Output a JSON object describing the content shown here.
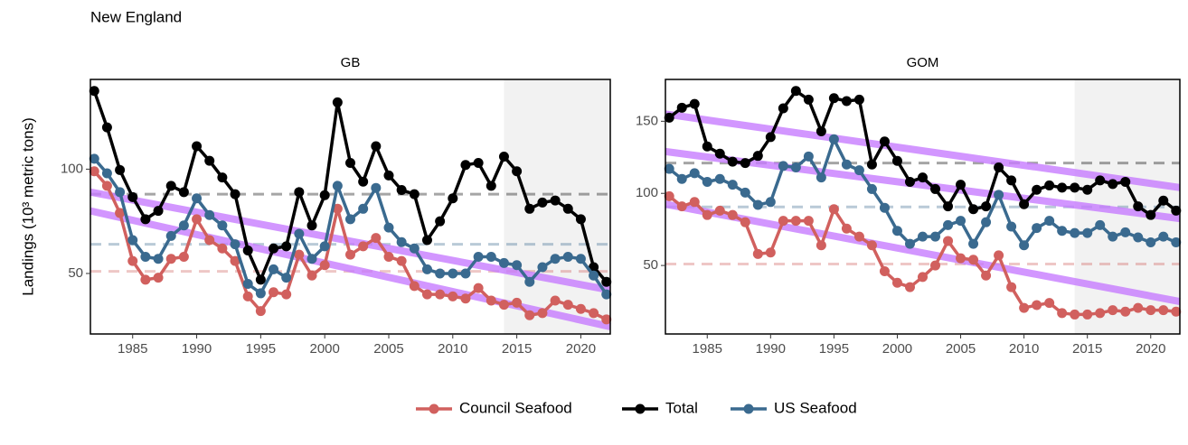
{
  "title": "New England",
  "ylabel": "Landings (10³ metric tons)",
  "chart_data": [
    {
      "type": "line",
      "title": "GB",
      "x": [
        1982,
        1983,
        1984,
        1985,
        1986,
        1987,
        1988,
        1989,
        1990,
        1991,
        1992,
        1993,
        1994,
        1995,
        1996,
        1997,
        1998,
        1999,
        2000,
        2001,
        2002,
        2003,
        2004,
        2005,
        2006,
        2007,
        2008,
        2009,
        2010,
        2011,
        2012,
        2013,
        2014,
        2015,
        2016,
        2017,
        2018,
        2019,
        2020,
        2021,
        2022
      ],
      "xlim": [
        1981.7,
        2022.3
      ],
      "xticks": [
        1985,
        1990,
        1995,
        2000,
        2005,
        2010,
        2015,
        2020
      ],
      "ylim": [
        21,
        143
      ],
      "yticks": [
        50,
        100
      ],
      "shade_start": 2014,
      "shade_color": "#f2f2f2",
      "trend_color": "#c77cff",
      "series": [
        {
          "name": "Council Seafood",
          "color": "#d1605e",
          "mean": 51,
          "trend": [
            80,
            24.5
          ],
          "values": [
            99,
            92,
            79,
            56,
            47,
            48,
            57,
            58,
            76,
            66,
            62,
            56,
            39,
            32,
            41,
            40,
            59,
            49,
            54,
            81,
            59,
            63,
            67,
            58,
            56,
            44,
            40,
            40,
            39,
            38,
            43,
            37,
            35,
            36,
            30,
            31,
            37,
            35,
            33,
            31,
            28
          ]
        },
        {
          "name": "Total",
          "color": "#000000",
          "mean": 88,
          "values": [
            137.5,
            120,
            99.6,
            86.6,
            76,
            80,
            92,
            89,
            111,
            104,
            96,
            88,
            61,
            47,
            62,
            63,
            89,
            73,
            87.5,
            132,
            103,
            94,
            111,
            97,
            90,
            88,
            66,
            75,
            86,
            102,
            103,
            92,
            106,
            99,
            81,
            84,
            85,
            81,
            76,
            53,
            46
          ]
        },
        {
          "name": "US Seafood",
          "color": "#3a6a8f",
          "mean": 64,
          "trend": [
            89,
            42
          ],
          "values": [
            105,
            98,
            89,
            66,
            58,
            57,
            68,
            73,
            86,
            78,
            73,
            64,
            45,
            40.5,
            52,
            48,
            69,
            57,
            63,
            92,
            76,
            81,
            91,
            72,
            65,
            62,
            52,
            50,
            50,
            50,
            58,
            58,
            55,
            54,
            46,
            53,
            57,
            58,
            57,
            49,
            40
          ]
        }
      ]
    },
    {
      "type": "line",
      "title": "GOM",
      "x": [
        1982,
        1983,
        1984,
        1985,
        1986,
        1987,
        1988,
        1989,
        1990,
        1991,
        1992,
        1993,
        1994,
        1995,
        1996,
        1997,
        1998,
        1999,
        2000,
        2001,
        2002,
        2003,
        2004,
        2005,
        2006,
        2007,
        2008,
        2009,
        2010,
        2011,
        2012,
        2013,
        2014,
        2015,
        2016,
        2017,
        2018,
        2019,
        2020,
        2021,
        2022
      ],
      "xlim": [
        1981.7,
        2022.3
      ],
      "xticks": [
        1985,
        1990,
        1995,
        2000,
        2005,
        2010,
        2015,
        2020
      ],
      "ylim": [
        2.5,
        179
      ],
      "yticks": [
        50,
        100,
        150
      ],
      "shade_start": 2014,
      "shade_color": "#f2f2f2",
      "trend_color": "#c77cff",
      "series": [
        {
          "name": "Council Seafood",
          "color": "#d1605e",
          "mean": 51,
          "trend": [
            92.5,
            25
          ],
          "values": [
            98,
            91,
            94,
            85,
            88,
            85,
            80,
            58,
            59,
            81,
            81,
            81,
            64,
            89,
            75.6,
            70,
            64,
            46,
            38,
            35,
            42,
            50,
            67,
            55,
            54,
            43,
            57,
            35,
            20.6,
            22.5,
            24,
            17,
            16,
            16,
            17,
            19,
            18,
            20.6,
            19,
            19,
            18
          ]
        },
        {
          "name": "Total",
          "color": "#000000",
          "mean": 121,
          "trend": [
            155,
            104
          ],
          "values": [
            152.5,
            159.4,
            162,
            132.5,
            127.5,
            122,
            121,
            126,
            139,
            159,
            171,
            165,
            143,
            166,
            164,
            165,
            120,
            136,
            122.5,
            108,
            111,
            103,
            91,
            106,
            89,
            91,
            118,
            109,
            92.5,
            102.5,
            105.5,
            104,
            104,
            102.5,
            109,
            106.5,
            108,
            91,
            85,
            95,
            88
          ]
        },
        {
          "name": "US Seafood",
          "color": "#3a6a8f",
          "mean": 90.6,
          "trend": [
            129,
            82.5
          ],
          "values": [
            117,
            110,
            114,
            108,
            110,
            106,
            100.5,
            92,
            94,
            119,
            118,
            125.6,
            111,
            137.5,
            120,
            116,
            103,
            90,
            74,
            65,
            70,
            70,
            78,
            81,
            65,
            80,
            99,
            77,
            64,
            76,
            81,
            74,
            72.5,
            72.5,
            78,
            70,
            73,
            69.5,
            66,
            70,
            66
          ]
        }
      ]
    }
  ]
}
